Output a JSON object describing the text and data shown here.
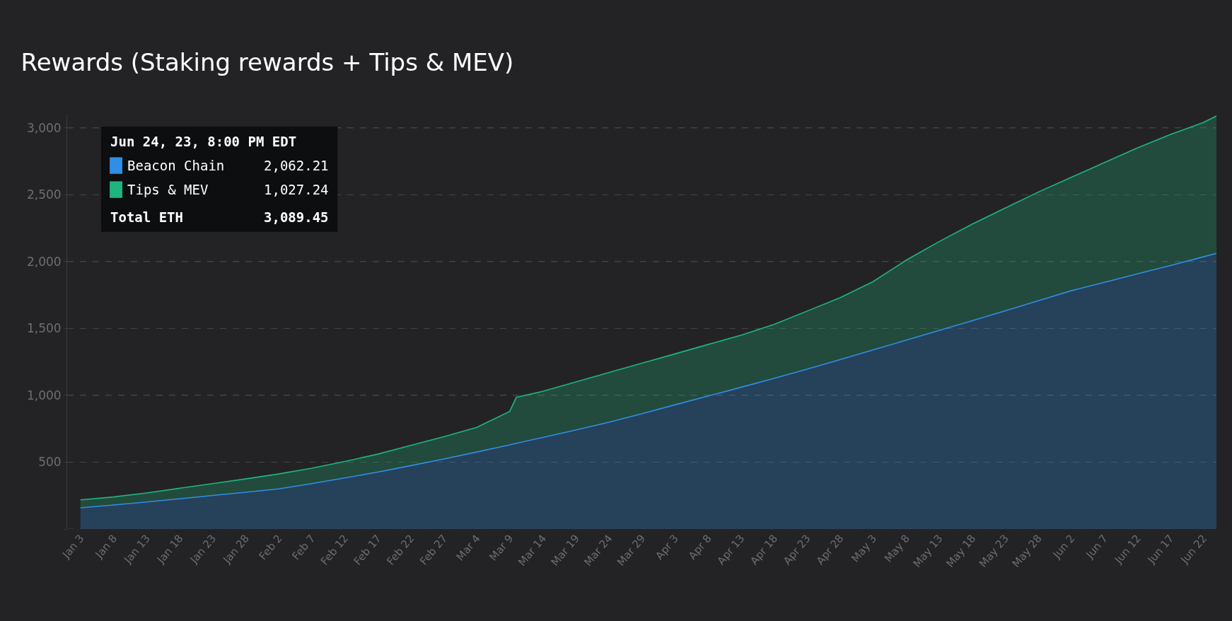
{
  "chart_data": {
    "type": "area",
    "stacked": true,
    "title": "Rewards (Staking rewards + Tips & MEV)",
    "x": [
      "--01-03",
      "--01-08",
      "--01-13",
      "--01-18",
      "--01-23",
      "--01-28",
      "--02-02",
      "--02-07",
      "--02-12",
      "--02-17",
      "--02-22",
      "--02-27",
      "--03-04",
      "--03-09",
      "--03-10",
      "--03-14",
      "--03-19",
      "--03-24",
      "--03-29",
      "--04-03",
      "--04-08",
      "--04-13",
      "--04-18",
      "--04-23",
      "--04-28",
      "--05-03",
      "--05-08",
      "--05-13",
      "--05-18",
      "--05-23",
      "--05-28",
      "--06-02",
      "--06-07",
      "--06-12",
      "--06-17",
      "--06-22",
      "--06-24"
    ],
    "series": [
      {
        "name": "Beacon Chain",
        "color": "#2f8fe6",
        "values": [
          159,
          180,
          202,
          226,
          251,
          275,
          300,
          340,
          382,
          426,
          474,
          524,
          576,
          630,
          641,
          685,
          741,
          799,
          862,
          929,
          994,
          1060,
          1127,
          1196,
          1267,
          1340,
          1412,
          1485,
          1558,
          1632,
          1707,
          1782,
          1845,
          1908,
          1971,
          2036,
          2062
        ]
      },
      {
        "name": "Tips & MEV",
        "color": "#1fb57f",
        "values": [
          59,
          60,
          68,
          79,
          89,
          100,
          112,
          115,
          123,
          134,
          151,
          166,
          184,
          250,
          344,
          345,
          359,
          371,
          378,
          381,
          386,
          390,
          403,
          434,
          463,
          510,
          598,
          665,
          722,
          768,
          813,
          848,
          895,
          942,
          979,
          1004,
          1027
        ]
      }
    ],
    "xlim": [
      "--01-01",
      "--06-24"
    ],
    "xticks": [
      {
        "value": "--01-03",
        "label": "Jan 3"
      },
      {
        "value": "--01-08",
        "label": "Jan 8"
      },
      {
        "value": "--01-13",
        "label": "Jan 13"
      },
      {
        "value": "--01-18",
        "label": "Jan 18"
      },
      {
        "value": "--01-23",
        "label": "Jan 23"
      },
      {
        "value": "--01-28",
        "label": "Jan 28"
      },
      {
        "value": "--02-02",
        "label": "Feb 2"
      },
      {
        "value": "--02-07",
        "label": "Feb 7"
      },
      {
        "value": "--02-12",
        "label": "Feb 12"
      },
      {
        "value": "--02-17",
        "label": "Feb 17"
      },
      {
        "value": "--02-22",
        "label": "Feb 22"
      },
      {
        "value": "--02-27",
        "label": "Feb 27"
      },
      {
        "value": "--03-04",
        "label": "Mar 4"
      },
      {
        "value": "--03-09",
        "label": "Mar 9"
      },
      {
        "value": "--03-14",
        "label": "Mar 14"
      },
      {
        "value": "--03-19",
        "label": "Mar 19"
      },
      {
        "value": "--03-24",
        "label": "Mar 24"
      },
      {
        "value": "--03-29",
        "label": "Mar 29"
      },
      {
        "value": "--04-03",
        "label": "Apr 3"
      },
      {
        "value": "--04-08",
        "label": "Apr 8"
      },
      {
        "value": "--04-13",
        "label": "Apr 13"
      },
      {
        "value": "--04-18",
        "label": "Apr 18"
      },
      {
        "value": "--04-23",
        "label": "Apr 23"
      },
      {
        "value": "--04-28",
        "label": "Apr 28"
      },
      {
        "value": "--05-03",
        "label": "May 3"
      },
      {
        "value": "--05-08",
        "label": "May 8"
      },
      {
        "value": "--05-13",
        "label": "May 13"
      },
      {
        "value": "--05-18",
        "label": "May 18"
      },
      {
        "value": "--05-23",
        "label": "May 23"
      },
      {
        "value": "--05-28",
        "label": "May 28"
      },
      {
        "value": "--06-02",
        "label": "Jun 2"
      },
      {
        "value": "--06-07",
        "label": "Jun 7"
      },
      {
        "value": "--06-12",
        "label": "Jun 12"
      },
      {
        "value": "--06-17",
        "label": "Jun 17"
      },
      {
        "value": "--06-22",
        "label": "Jun 22"
      }
    ],
    "ylim": [
      0,
      3100
    ],
    "yticks": [
      {
        "value": 0,
        "label": null
      },
      {
        "value": 500,
        "label": "500"
      },
      {
        "value": 1000,
        "label": "1,000"
      },
      {
        "value": 1500,
        "label": "1,500"
      },
      {
        "value": 2000,
        "label": "2,000"
      },
      {
        "value": 2500,
        "label": "2,500"
      },
      {
        "value": 3000,
        "label": "3,000"
      }
    ],
    "grid": "y",
    "legend": "top left",
    "annotations": [
      "Jun 24, 23, 8:00 PM EDT",
      "2,062.21",
      "1,027.24",
      "Total ETH",
      "3,089.45"
    ]
  }
}
